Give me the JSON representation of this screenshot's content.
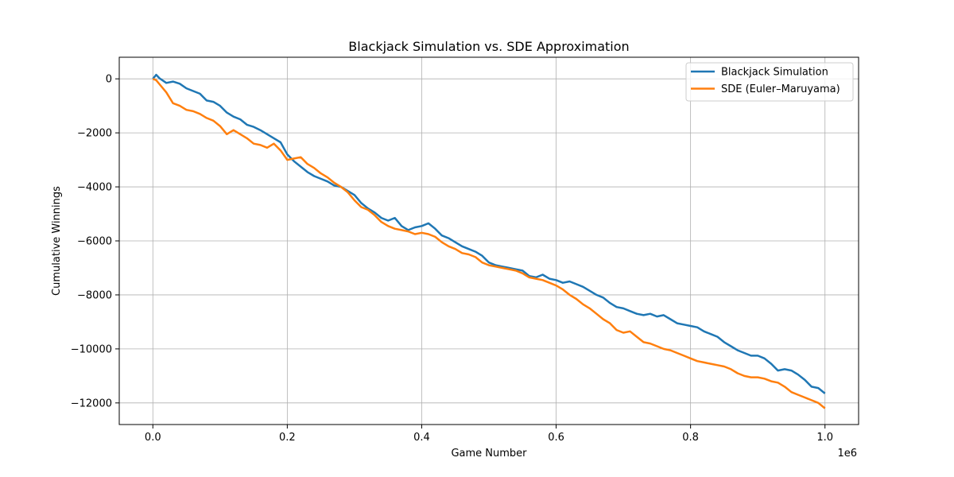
{
  "chart_data": {
    "type": "line",
    "title": "Blackjack Simulation vs. SDE Approximation",
    "xlabel": "Game Number",
    "ylabel": "Cumulative Winnings",
    "x_offset_label": "1e6",
    "xlim": [
      -50000,
      1050000
    ],
    "ylim": [
      -12800,
      800
    ],
    "xticks": [
      0,
      200000,
      400000,
      600000,
      800000,
      1000000
    ],
    "xtick_labels": [
      "0.0",
      "0.2",
      "0.4",
      "0.6",
      "0.8",
      "1.0"
    ],
    "yticks": [
      0,
      -2000,
      -4000,
      -6000,
      -8000,
      -10000,
      -12000
    ],
    "ytick_labels": [
      "0",
      "−2000",
      "−4000",
      "−6000",
      "−8000",
      "−10000",
      "−12000"
    ],
    "grid": true,
    "legend_position": "upper-right",
    "x": [
      0,
      5000,
      10000,
      20000,
      30000,
      40000,
      50000,
      60000,
      70000,
      80000,
      90000,
      100000,
      110000,
      120000,
      130000,
      140000,
      150000,
      160000,
      170000,
      180000,
      190000,
      200000,
      210000,
      220000,
      230000,
      240000,
      250000,
      260000,
      270000,
      280000,
      290000,
      300000,
      310000,
      320000,
      330000,
      340000,
      350000,
      360000,
      370000,
      380000,
      390000,
      400000,
      410000,
      420000,
      430000,
      440000,
      450000,
      460000,
      470000,
      480000,
      490000,
      500000,
      510000,
      520000,
      530000,
      540000,
      550000,
      560000,
      570000,
      580000,
      590000,
      600000,
      610000,
      620000,
      630000,
      640000,
      650000,
      660000,
      670000,
      680000,
      690000,
      700000,
      710000,
      720000,
      730000,
      740000,
      750000,
      760000,
      770000,
      780000,
      790000,
      800000,
      810000,
      820000,
      830000,
      840000,
      850000,
      860000,
      870000,
      880000,
      890000,
      900000,
      910000,
      920000,
      930000,
      940000,
      950000,
      960000,
      970000,
      980000,
      990000,
      1000000
    ],
    "series": [
      {
        "name": "Blackjack Simulation",
        "color": "#1f77b4",
        "values": [
          0,
          150,
          20,
          -150,
          -100,
          -180,
          -350,
          -450,
          -550,
          -800,
          -850,
          -1000,
          -1250,
          -1400,
          -1500,
          -1700,
          -1780,
          -1900,
          -2050,
          -2200,
          -2350,
          -2800,
          -3050,
          -3250,
          -3450,
          -3600,
          -3700,
          -3800,
          -3950,
          -4000,
          -4150,
          -4300,
          -4600,
          -4800,
          -4950,
          -5150,
          -5250,
          -5150,
          -5450,
          -5600,
          -5500,
          -5450,
          -5350,
          -5550,
          -5800,
          -5900,
          -6050,
          -6200,
          -6300,
          -6400,
          -6550,
          -6800,
          -6900,
          -6950,
          -7000,
          -7050,
          -7100,
          -7300,
          -7350,
          -7250,
          -7400,
          -7450,
          -7550,
          -7500,
          -7600,
          -7700,
          -7850,
          -8000,
          -8100,
          -8300,
          -8450,
          -8500,
          -8600,
          -8700,
          -8750,
          -8700,
          -8800,
          -8750,
          -8900,
          -9050,
          -9100,
          -9150,
          -9200,
          -9350,
          -9450,
          -9550,
          -9750,
          -9900,
          -10050,
          -10150,
          -10250,
          -10250,
          -10350,
          -10550,
          -10800,
          -10750,
          -10800,
          -10950,
          -11150,
          -11400,
          -11450,
          -11650
        ]
      },
      {
        "name": "SDE (Euler–Maruyama)",
        "color": "#ff7f0e",
        "values": [
          0,
          -50,
          -200,
          -500,
          -900,
          -1000,
          -1150,
          -1200,
          -1300,
          -1450,
          -1550,
          -1750,
          -2050,
          -1900,
          -2050,
          -2200,
          -2400,
          -2450,
          -2550,
          -2400,
          -2650,
          -3000,
          -2950,
          -2900,
          -3150,
          -3300,
          -3500,
          -3650,
          -3850,
          -4000,
          -4200,
          -4500,
          -4750,
          -4850,
          -5050,
          -5300,
          -5450,
          -5550,
          -5600,
          -5650,
          -5750,
          -5700,
          -5750,
          -5850,
          -6050,
          -6200,
          -6300,
          -6450,
          -6500,
          -6600,
          -6800,
          -6900,
          -6950,
          -7000,
          -7050,
          -7100,
          -7200,
          -7350,
          -7400,
          -7450,
          -7550,
          -7650,
          -7800,
          -8000,
          -8150,
          -8350,
          -8500,
          -8700,
          -8900,
          -9050,
          -9300,
          -9400,
          -9350,
          -9550,
          -9750,
          -9800,
          -9900,
          -10000,
          -10050,
          -10150,
          -10250,
          -10350,
          -10450,
          -10500,
          -10550,
          -10600,
          -10650,
          -10750,
          -10900,
          -11000,
          -11050,
          -11050,
          -11100,
          -11200,
          -11250,
          -11400,
          -11600,
          -11700,
          -11800,
          -11900,
          -12000,
          -12200
        ]
      }
    ]
  }
}
